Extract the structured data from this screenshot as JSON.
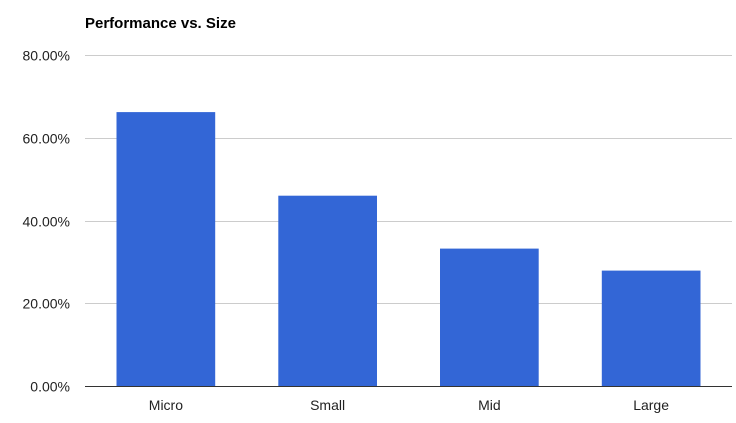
{
  "chart_data": {
    "type": "bar",
    "title": "Performance vs. Size",
    "xlabel": "",
    "ylabel": "",
    "categories": [
      "Micro",
      "Small",
      "Mid",
      "Large"
    ],
    "values": [
      66.2,
      46.0,
      33.2,
      27.9
    ],
    "ylim": [
      0,
      80
    ],
    "yticks": [
      0,
      20,
      40,
      60,
      80
    ],
    "ytick_labels": [
      "0.00%",
      "20.00%",
      "40.00%",
      "60.00%",
      "80.00%"
    ],
    "bar_color": "#3366d6",
    "grid": true,
    "legend": "none"
  }
}
